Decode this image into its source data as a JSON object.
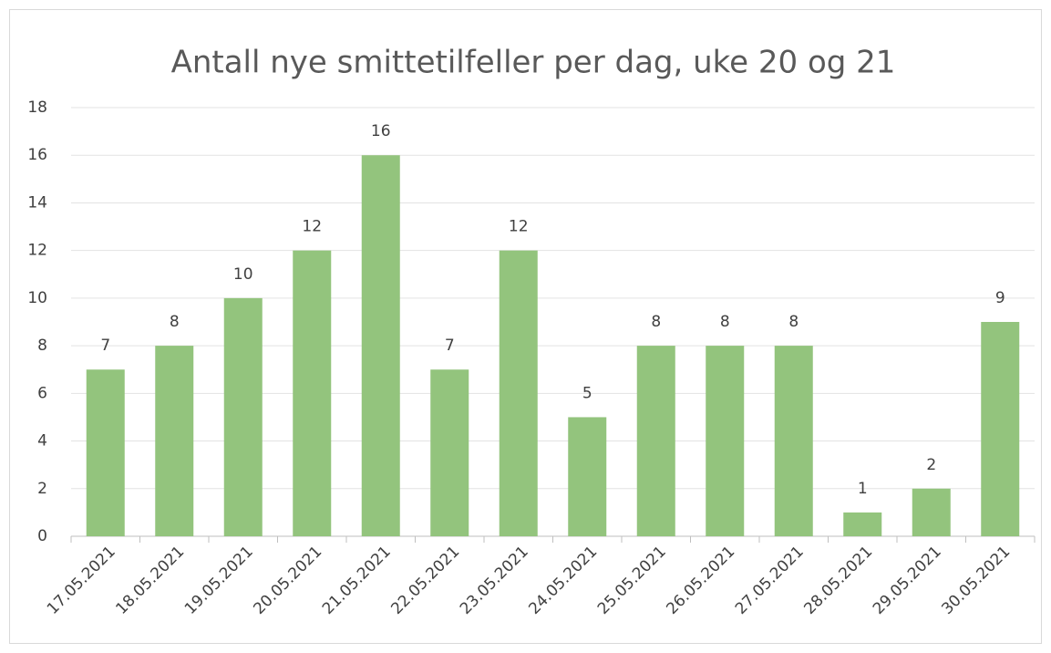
{
  "chart_data": {
    "type": "bar",
    "title": "Antall nye smittetilfeller per dag, uke 20 og 21",
    "categories": [
      "17.05.2021",
      "18.05.2021",
      "19.05.2021",
      "20.05.2021",
      "21.05.2021",
      "22.05.2021",
      "23.05.2021",
      "24.05.2021",
      "25.05.2021",
      "26.05.2021",
      "27.05.2021",
      "28.05.2021",
      "29.05.2021",
      "30.05.2021"
    ],
    "values": [
      7,
      8,
      10,
      12,
      16,
      7,
      12,
      5,
      8,
      8,
      8,
      1,
      2,
      9
    ],
    "color": "#93c47d",
    "ylim": [
      0,
      18
    ],
    "yticks": [
      0,
      2,
      4,
      6,
      8,
      10,
      12,
      14,
      16,
      18
    ],
    "grid": true
  }
}
